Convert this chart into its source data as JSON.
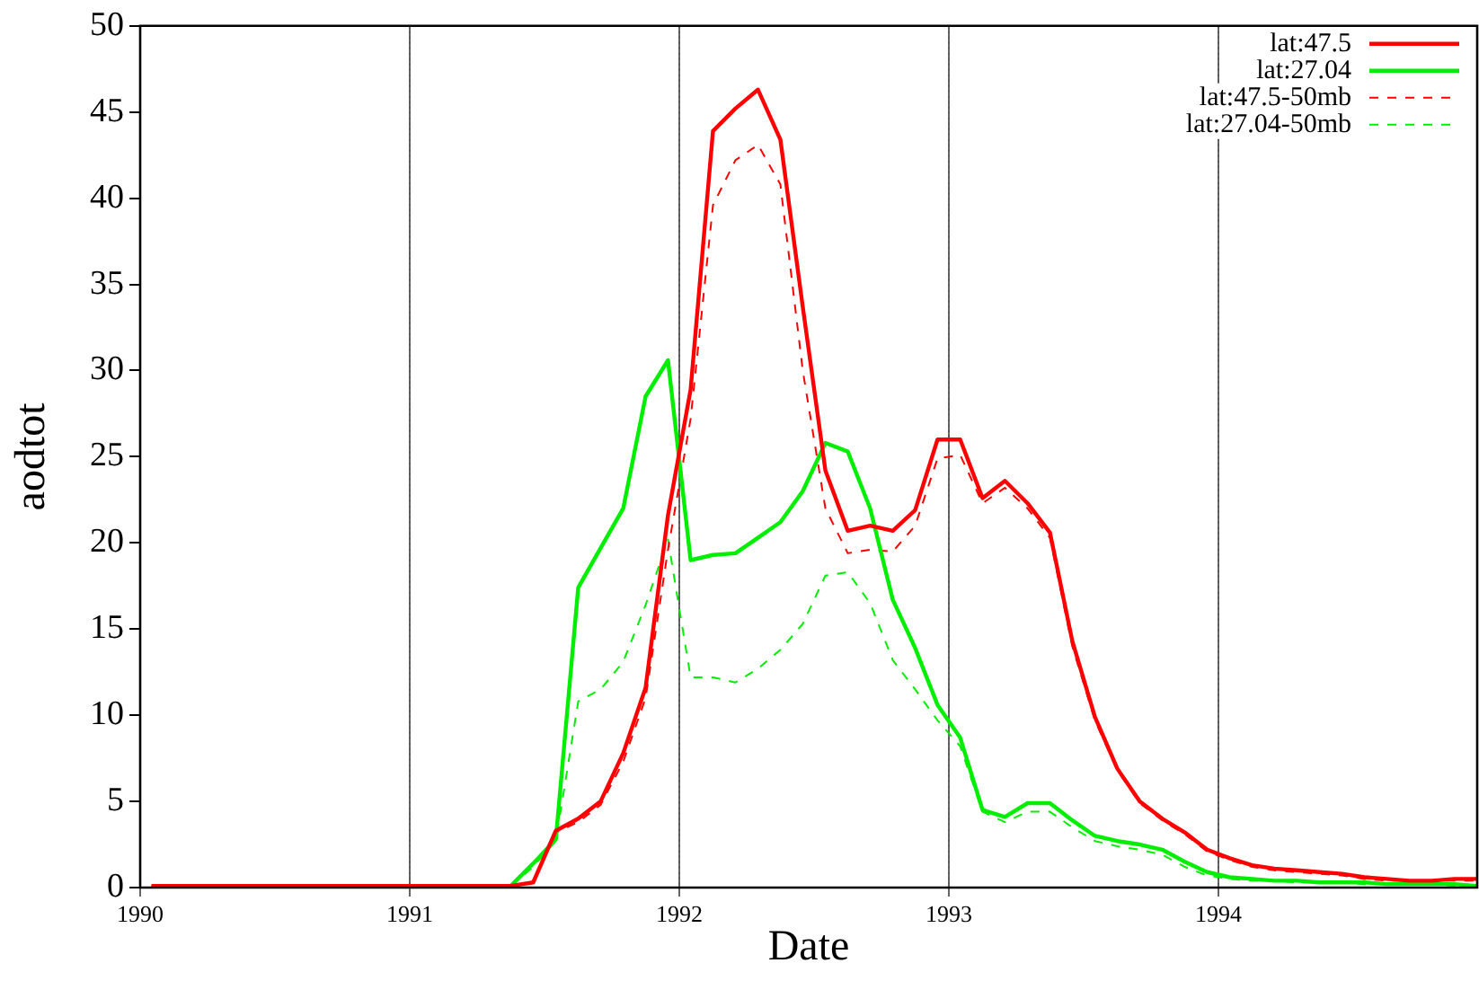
{
  "chart_data": {
    "type": "line",
    "xlabel": "Date",
    "ylabel": "aodtot",
    "x": [
      1990.042,
      1990.125,
      1990.208,
      1990.292,
      1990.375,
      1990.458,
      1990.542,
      1990.625,
      1990.708,
      1990.792,
      1990.875,
      1990.958,
      1991.042,
      1991.125,
      1991.208,
      1991.292,
      1991.375,
      1991.458,
      1991.542,
      1991.625,
      1991.708,
      1991.792,
      1991.875,
      1991.958,
      1992.042,
      1992.125,
      1992.208,
      1992.292,
      1992.375,
      1992.458,
      1992.542,
      1992.625,
      1992.708,
      1992.792,
      1992.875,
      1992.958,
      1993.042,
      1993.125,
      1993.208,
      1993.292,
      1993.375,
      1993.458,
      1993.542,
      1993.625,
      1993.708,
      1993.792,
      1993.875,
      1993.958,
      1994.042,
      1994.125,
      1994.208,
      1994.292,
      1994.375,
      1994.458,
      1994.542,
      1994.625,
      1994.708,
      1994.792,
      1994.875,
      1994.958
    ],
    "series": [
      {
        "name": "lat:47.5",
        "color": "#ff0000",
        "line_style": "solid",
        "values": [
          0.1,
          0.1,
          0.1,
          0.1,
          0.1,
          0.1,
          0.1,
          0.1,
          0.1,
          0.1,
          0.1,
          0.1,
          0.1,
          0.1,
          0.1,
          0.1,
          0.1,
          0.3,
          3.3,
          4.0,
          5.0,
          7.8,
          11.6,
          21.6,
          28.9,
          43.9,
          45.2,
          46.3,
          43.4,
          33.7,
          24.2,
          20.7,
          21.0,
          20.7,
          21.9,
          26.0,
          26.0,
          22.6,
          23.6,
          22.3,
          20.6,
          14.3,
          9.9,
          6.9,
          5.0,
          4.0,
          3.2,
          2.2,
          1.7,
          1.3,
          1.1,
          1.0,
          0.9,
          0.8,
          0.6,
          0.5,
          0.4,
          0.4,
          0.5,
          0.5
        ]
      },
      {
        "name": "lat:27.04",
        "color": "#00ee00",
        "line_style": "solid",
        "values": [
          null,
          null,
          null,
          null,
          null,
          null,
          null,
          null,
          null,
          null,
          null,
          null,
          null,
          null,
          null,
          null,
          0.1,
          1.4,
          2.8,
          17.4,
          19.7,
          22.0,
          28.5,
          30.6,
          19.0,
          19.3,
          19.4,
          20.3,
          21.2,
          23.0,
          25.8,
          25.3,
          22.0,
          16.7,
          13.9,
          10.6,
          8.7,
          4.5,
          4.1,
          4.9,
          4.9,
          3.9,
          3.0,
          2.7,
          2.5,
          2.2,
          1.5,
          0.9,
          0.6,
          0.5,
          0.4,
          0.4,
          0.3,
          0.3,
          0.3,
          0.2,
          0.2,
          0.2,
          0.2,
          0.1
        ]
      },
      {
        "name": "lat:47.5-50mb",
        "color": "#ff0000",
        "line_style": "dashed",
        "values": [
          0.1,
          0.1,
          0.1,
          0.1,
          0.1,
          0.1,
          0.1,
          0.1,
          0.1,
          0.1,
          0.1,
          0.1,
          0.1,
          0.1,
          0.1,
          0.1,
          0.1,
          0.3,
          3.2,
          3.8,
          4.8,
          7.3,
          11.0,
          19.6,
          27.2,
          39.6,
          42.2,
          43.1,
          40.8,
          30.0,
          22.0,
          19.4,
          19.6,
          19.5,
          21.0,
          24.9,
          25.1,
          22.3,
          23.2,
          22.0,
          20.3,
          14.0,
          9.7,
          6.8,
          4.9,
          3.9,
          3.1,
          2.1,
          1.6,
          1.2,
          1.0,
          0.9,
          0.8,
          0.7,
          0.5,
          0.4,
          0.4,
          0.4,
          0.4,
          0.4
        ]
      },
      {
        "name": "lat:27.04-50mb",
        "color": "#00ee00",
        "line_style": "dashed",
        "values": [
          null,
          null,
          null,
          null,
          null,
          null,
          null,
          null,
          null,
          null,
          null,
          null,
          null,
          null,
          null,
          null,
          0.1,
          1.2,
          2.7,
          10.8,
          11.5,
          13.1,
          16.4,
          20.2,
          12.2,
          12.2,
          11.9,
          12.7,
          13.8,
          15.3,
          18.1,
          18.3,
          16.5,
          13.2,
          11.5,
          9.7,
          8.2,
          4.4,
          3.8,
          4.4,
          4.4,
          3.5,
          2.7,
          2.4,
          2.2,
          1.9,
          1.2,
          0.7,
          0.5,
          0.4,
          0.4,
          0.3,
          0.3,
          0.3,
          0.2,
          0.2,
          0.2,
          0.2,
          0.1,
          0.1
        ]
      }
    ],
    "xlim": [
      1990,
      1994.96
    ],
    "xticks": [
      1990,
      1991,
      1992,
      1993,
      1994
    ],
    "ylim": [
      0,
      50
    ],
    "yticks": [
      0,
      5,
      10,
      15,
      20,
      25,
      30,
      35,
      40,
      45,
      50
    ],
    "grid": "x",
    "legend": "top right",
    "marker": "none"
  }
}
